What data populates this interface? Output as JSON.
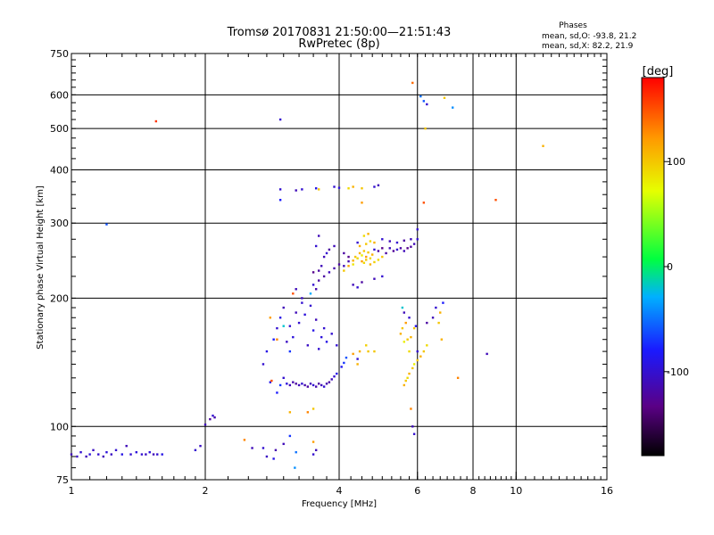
{
  "chart_data": {
    "type": "scatter",
    "title_line1": "Tromsø 20170831 21:50:00—21:51:43",
    "title_line2": "RwPretec (8p)",
    "stats": {
      "heading": "Phases",
      "line1": "mean, sd,O: -93.8, 21.2",
      "line2": "mean, sd,X:  82.2, 21.9"
    },
    "xlabel": "Frequency [MHz]",
    "ylabel": "Stationary phase Virtual Height [km]",
    "x_scale": "log",
    "y_scale": "log",
    "xlim": [
      1,
      16
    ],
    "ylim": [
      75,
      750
    ],
    "x_ticks": [
      1,
      2,
      4,
      6,
      8,
      10,
      16
    ],
    "x_tick_labels": [
      "1",
      "2",
      "4",
      "6",
      "8",
      "10",
      "16"
    ],
    "x_major_grid": [
      2,
      4,
      6,
      8,
      10
    ],
    "x_minor_ticks": [
      1.5,
      3,
      5,
      7,
      9,
      12,
      14
    ],
    "y_ticks": [
      75,
      100,
      200,
      300,
      400,
      500,
      600,
      750
    ],
    "y_tick_labels": [
      "75",
      "100",
      "200",
      "300",
      "400",
      "500",
      "600",
      "750"
    ],
    "y_major_grid": [
      100,
      200,
      300,
      400,
      500,
      600
    ],
    "grid": true,
    "colorbar": {
      "label": "[deg]",
      "range": [
        -180,
        180
      ],
      "ticks": [
        100,
        0,
        -100
      ],
      "tick_labels": [
        "100",
        "0",
        "-100"
      ],
      "colormap": "rainbow: black-purple-blue-cyan-green-yellow-orange-red"
    },
    "points": [
      [
        1.0,
        86,
        -110
      ],
      [
        1.03,
        85,
        -105
      ],
      [
        1.05,
        87,
        -100
      ],
      [
        1.08,
        85,
        -110
      ],
      [
        1.1,
        86,
        -95
      ],
      [
        1.12,
        88,
        -105
      ],
      [
        1.15,
        86,
        -100
      ],
      [
        1.18,
        85,
        -110
      ],
      [
        1.2,
        87,
        -95
      ],
      [
        1.23,
        86,
        -105
      ],
      [
        1.26,
        88,
        -100
      ],
      [
        1.3,
        86,
        -90
      ],
      [
        1.33,
        90,
        -110
      ],
      [
        1.36,
        86,
        -100
      ],
      [
        1.4,
        87,
        -95
      ],
      [
        1.44,
        86,
        -100
      ],
      [
        1.47,
        86,
        -105
      ],
      [
        1.5,
        87,
        -95
      ],
      [
        1.53,
        86,
        -110
      ],
      [
        1.56,
        86,
        -100
      ],
      [
        1.6,
        86,
        -90
      ],
      [
        1.9,
        88,
        -100
      ],
      [
        1.95,
        90,
        -105
      ],
      [
        2.55,
        89,
        -110
      ],
      [
        2.7,
        89,
        -100
      ],
      [
        2.75,
        85,
        -105
      ],
      [
        2.88,
        88,
        -115
      ],
      [
        3.0,
        91,
        -110
      ],
      [
        3.2,
        87,
        -50
      ],
      [
        3.5,
        86,
        -100
      ],
      [
        3.55,
        88,
        -110
      ],
      [
        2.45,
        93,
        130
      ],
      [
        2.85,
        84,
        -90
      ],
      [
        3.1,
        95,
        -70
      ],
      [
        3.18,
        80,
        -40
      ],
      [
        3.5,
        92,
        120
      ],
      [
        2.0,
        101,
        -110
      ],
      [
        2.05,
        104,
        -120
      ],
      [
        2.08,
        106,
        -100
      ],
      [
        2.1,
        105,
        -115
      ],
      [
        3.1,
        108,
        110
      ],
      [
        3.4,
        108,
        130
      ],
      [
        3.5,
        110,
        100
      ],
      [
        2.8,
        127,
        -90
      ],
      [
        2.82,
        128,
        150
      ],
      [
        2.9,
        120,
        -80
      ],
      [
        2.95,
        125,
        -70
      ],
      [
        3.0,
        130,
        -100
      ],
      [
        3.05,
        126,
        -95
      ],
      [
        3.1,
        125,
        -110
      ],
      [
        3.15,
        127,
        -115
      ],
      [
        3.2,
        126,
        -120
      ],
      [
        3.25,
        125,
        -110
      ],
      [
        3.3,
        126,
        -100
      ],
      [
        3.35,
        125,
        -115
      ],
      [
        3.4,
        124,
        -120
      ],
      [
        3.45,
        126,
        -110
      ],
      [
        3.5,
        125,
        -100
      ],
      [
        3.55,
        124,
        -115
      ],
      [
        3.6,
        126,
        -120
      ],
      [
        3.65,
        125,
        -110
      ],
      [
        3.7,
        124,
        -100
      ],
      [
        3.75,
        126,
        -115
      ],
      [
        3.8,
        127,
        -120
      ],
      [
        3.85,
        129,
        -110
      ],
      [
        3.9,
        131,
        -100
      ],
      [
        3.95,
        133,
        -90
      ],
      [
        4.05,
        138,
        -85
      ],
      [
        4.1,
        141,
        -70
      ],
      [
        4.15,
        145,
        -60
      ],
      [
        4.3,
        148,
        120
      ],
      [
        4.4,
        144,
        -100
      ],
      [
        4.45,
        150,
        110
      ],
      [
        4.6,
        155,
        95
      ],
      [
        4.8,
        150,
        100
      ],
      [
        2.7,
        140,
        -100
      ],
      [
        2.75,
        150,
        -90
      ],
      [
        2.85,
        160,
        -80
      ],
      [
        2.9,
        170,
        -100
      ],
      [
        2.95,
        180,
        -90
      ],
      [
        3.0,
        190,
        -110
      ],
      [
        3.05,
        158,
        -105
      ],
      [
        3.1,
        172,
        -100
      ],
      [
        3.15,
        162,
        -95
      ],
      [
        3.2,
        185,
        -110
      ],
      [
        3.25,
        175,
        -100
      ],
      [
        3.3,
        195,
        -100
      ],
      [
        3.35,
        183,
        -95
      ],
      [
        3.4,
        155,
        -105
      ],
      [
        3.45,
        192,
        -100
      ],
      [
        3.5,
        168,
        -90
      ],
      [
        3.55,
        178,
        -110
      ],
      [
        3.6,
        152,
        -100
      ],
      [
        3.65,
        162,
        -95
      ],
      [
        3.7,
        170,
        -100
      ],
      [
        3.75,
        158,
        -90
      ],
      [
        3.85,
        165,
        -100
      ],
      [
        3.95,
        155,
        -100
      ],
      [
        2.8,
        180,
        120
      ],
      [
        2.9,
        160,
        130
      ],
      [
        3.0,
        172,
        -20
      ],
      [
        3.1,
        150,
        -70
      ],
      [
        3.15,
        205,
        150
      ],
      [
        3.2,
        210,
        -110
      ],
      [
        3.3,
        200,
        -105
      ],
      [
        3.45,
        205,
        -30
      ],
      [
        3.5,
        215,
        -100
      ],
      [
        3.55,
        210,
        -115
      ],
      [
        3.6,
        220,
        -120
      ],
      [
        3.7,
        225,
        -120
      ],
      [
        3.8,
        230,
        -110
      ],
      [
        3.9,
        235,
        -115
      ],
      [
        4.0,
        240,
        -120
      ],
      [
        4.1,
        238,
        -110
      ],
      [
        4.2,
        244,
        -115
      ],
      [
        4.3,
        245,
        110
      ],
      [
        4.35,
        250,
        100
      ],
      [
        4.4,
        248,
        90
      ],
      [
        4.45,
        255,
        110
      ],
      [
        4.5,
        252,
        80
      ],
      [
        4.55,
        258,
        100
      ],
      [
        4.6,
        250,
        120
      ],
      [
        4.65,
        256,
        100
      ],
      [
        4.7,
        248,
        90
      ],
      [
        4.75,
        253,
        110
      ],
      [
        4.8,
        260,
        -100
      ],
      [
        4.9,
        258,
        -120
      ],
      [
        5.0,
        262,
        -130
      ],
      [
        5.1,
        255,
        -120
      ],
      [
        5.2,
        262,
        -110
      ],
      [
        5.3,
        258,
        -125
      ],
      [
        5.4,
        260,
        -100
      ],
      [
        5.5,
        262,
        -120
      ],
      [
        5.6,
        258,
        -110
      ],
      [
        5.7,
        262,
        -130
      ],
      [
        5.8,
        264,
        -120
      ],
      [
        5.9,
        268,
        -110
      ],
      [
        6.0,
        275,
        -100
      ],
      [
        3.7,
        250,
        -110
      ],
      [
        3.75,
        255,
        -100
      ],
      [
        3.8,
        260,
        -120
      ],
      [
        3.9,
        265,
        -110
      ],
      [
        4.1,
        255,
        -120
      ],
      [
        4.2,
        250,
        -130
      ],
      [
        4.4,
        270,
        -100
      ],
      [
        4.45,
        265,
        110
      ],
      [
        4.6,
        268,
        100
      ],
      [
        4.7,
        272,
        90
      ],
      [
        4.8,
        270,
        110
      ],
      [
        5.0,
        275,
        -100
      ],
      [
        5.2,
        272,
        -110
      ],
      [
        5.4,
        270,
        -100
      ],
      [
        5.6,
        273,
        -120
      ],
      [
        5.8,
        275,
        -110
      ],
      [
        6.0,
        290,
        -100
      ],
      [
        4.1,
        232,
        100
      ],
      [
        4.2,
        238,
        115
      ],
      [
        4.3,
        240,
        85
      ],
      [
        4.5,
        244,
        120
      ],
      [
        4.55,
        242,
        90
      ],
      [
        4.6,
        246,
        100
      ],
      [
        4.7,
        240,
        110
      ],
      [
        4.8,
        243,
        95
      ],
      [
        4.9,
        246,
        90
      ],
      [
        5.0,
        250,
        100
      ],
      [
        4.3,
        215,
        -110
      ],
      [
        4.4,
        212,
        -100
      ],
      [
        4.5,
        218,
        -120
      ],
      [
        4.8,
        222,
        -110
      ],
      [
        5.0,
        225,
        -100
      ],
      [
        3.5,
        230,
        -130
      ],
      [
        3.6,
        232,
        -120
      ],
      [
        3.65,
        238,
        -110
      ],
      [
        3.6,
        280,
        -110
      ],
      [
        3.55,
        265,
        -100
      ],
      [
        4.55,
        280,
        90
      ],
      [
        4.65,
        283,
        110
      ],
      [
        2.95,
        360,
        -100
      ],
      [
        3.2,
        358,
        -110
      ],
      [
        3.3,
        360,
        -100
      ],
      [
        3.55,
        362,
        -90
      ],
      [
        3.6,
        360,
        100
      ],
      [
        3.9,
        365,
        -100
      ],
      [
        4.0,
        363,
        -95
      ],
      [
        4.2,
        362,
        90
      ],
      [
        4.3,
        365,
        110
      ],
      [
        4.5,
        362,
        100
      ],
      [
        4.8,
        365,
        -100
      ],
      [
        4.9,
        368,
        -110
      ],
      [
        4.5,
        335,
        120
      ],
      [
        2.95,
        340,
        -80
      ],
      [
        6.2,
        335,
        150
      ],
      [
        9.0,
        340,
        150
      ],
      [
        1.2,
        298,
        -60
      ],
      [
        1.55,
        520,
        160
      ],
      [
        2.95,
        525,
        -100
      ],
      [
        5.85,
        640,
        140
      ],
      [
        6.1,
        595,
        -50
      ],
      [
        6.2,
        580,
        -60
      ],
      [
        6.3,
        570,
        -100
      ],
      [
        6.9,
        590,
        100
      ],
      [
        7.2,
        560,
        -40
      ],
      [
        11.5,
        455,
        110
      ],
      [
        6.25,
        500,
        100
      ],
      [
        5.5,
        165,
        110
      ],
      [
        5.55,
        170,
        100
      ],
      [
        5.6,
        158,
        80
      ],
      [
        5.65,
        175,
        120
      ],
      [
        5.7,
        160,
        100
      ],
      [
        5.75,
        150,
        90
      ],
      [
        5.8,
        162,
        110
      ],
      [
        5.9,
        170,
        100
      ],
      [
        6.0,
        150,
        -100
      ],
      [
        5.6,
        125,
        110
      ],
      [
        5.65,
        128,
        100
      ],
      [
        5.7,
        130,
        90
      ],
      [
        5.75,
        133,
        110
      ],
      [
        5.85,
        137,
        100
      ],
      [
        5.9,
        140,
        80
      ],
      [
        6.0,
        143,
        100
      ],
      [
        6.1,
        146,
        110
      ],
      [
        6.2,
        150,
        100
      ],
      [
        6.3,
        155,
        90
      ],
      [
        5.55,
        190,
        -20
      ],
      [
        5.6,
        185,
        -110
      ],
      [
        5.75,
        180,
        -100
      ],
      [
        5.95,
        172,
        -90
      ],
      [
        6.3,
        175,
        -120
      ],
      [
        6.5,
        180,
        -110
      ],
      [
        6.6,
        190,
        -100
      ],
      [
        6.75,
        185,
        110
      ],
      [
        6.7,
        175,
        100
      ],
      [
        6.85,
        195,
        -80
      ],
      [
        6.8,
        160,
        110
      ],
      [
        5.8,
        110,
        130
      ],
      [
        5.85,
        100,
        -110
      ],
      [
        5.9,
        96,
        -100
      ],
      [
        7.4,
        130,
        130
      ],
      [
        8.6,
        148,
        -110
      ],
      [
        4.65,
        150,
        100
      ],
      [
        4.4,
        140,
        110
      ]
    ]
  }
}
